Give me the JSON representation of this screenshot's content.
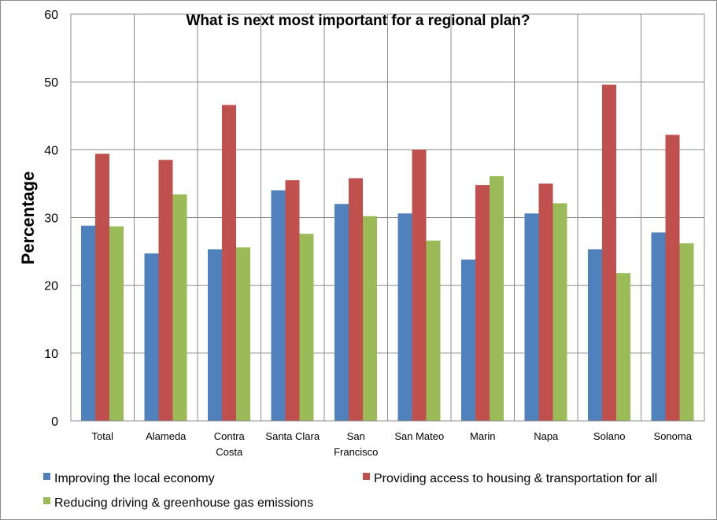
{
  "chart_data": {
    "type": "bar",
    "title": "What is next most important for a regional plan?",
    "ylabel": "Percentage",
    "xlabel": "",
    "ylim": [
      0,
      60
    ],
    "yticks": [
      0,
      10,
      20,
      30,
      40,
      50,
      60
    ],
    "grid": true,
    "legend_position": "bottom",
    "categories": [
      [
        "Total"
      ],
      [
        "Alameda"
      ],
      [
        "Contra",
        "Costa"
      ],
      [
        "Santa Clara"
      ],
      [
        "San",
        "Francisco"
      ],
      [
        "San Mateo"
      ],
      [
        "Marin"
      ],
      [
        "Napa"
      ],
      [
        "Solano"
      ],
      [
        "Sonoma"
      ]
    ],
    "series": [
      {
        "name": "Improving the local economy",
        "color": "#4f81bd",
        "values": [
          28.8,
          24.7,
          25.3,
          34.0,
          32.0,
          30.6,
          23.8,
          30.6,
          25.3,
          27.8
        ]
      },
      {
        "name": "Providing access to housing & transportation for all",
        "color": "#c0504d",
        "values": [
          39.4,
          38.5,
          46.6,
          35.5,
          35.8,
          40.0,
          34.8,
          35.0,
          49.6,
          42.2
        ]
      },
      {
        "name": "Reducing driving & greenhouse gas emissions",
        "color": "#9bbb59",
        "values": [
          28.7,
          33.4,
          25.6,
          27.6,
          30.2,
          26.6,
          36.1,
          32.1,
          21.8,
          26.2
        ]
      }
    ]
  }
}
